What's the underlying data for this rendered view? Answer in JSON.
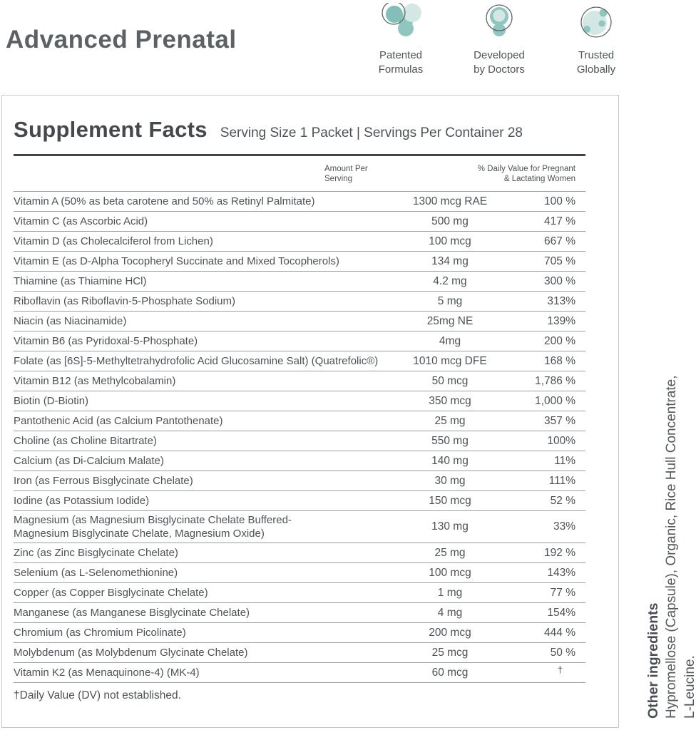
{
  "header": {
    "title": "Advanced Prenatal",
    "badges": [
      {
        "icon": "molecule-icon",
        "label": "Patented\nFormulas"
      },
      {
        "icon": "doctor-icon",
        "label": "Developed\nby Doctors"
      },
      {
        "icon": "globe-icon",
        "label": "Trusted\nGlobally"
      }
    ]
  },
  "supplement_facts": {
    "title": "Supplement Facts",
    "serving_info": "Serving Size 1 Packet | Servings Per Container 28",
    "columns": {
      "amount": "Amount Per\nServing",
      "daily_value": "% Daily Value for Pregnant\n& Lactating Women"
    },
    "rows": [
      {
        "name": "Vitamin A (50% as beta carotene and 50% as Retinyl Palmitate)",
        "amount": "1300 mcg RAE",
        "dv": "100 %"
      },
      {
        "name": "Vitamin C (as Ascorbic Acid)",
        "amount": "500 mg",
        "dv": "417 %"
      },
      {
        "name": "Vitamin D (as Cholecalciferol from Lichen)",
        "amount": "100 mcg",
        "dv": "667 %"
      },
      {
        "name": "Vitamin E (as D-Alpha Tocopheryl Succinate and Mixed Tocopherols)",
        "amount": "134 mg",
        "dv": "705 %"
      },
      {
        "name": "Thiamine (as Thiamine HCl)",
        "amount": "4.2 mg",
        "dv": "300 %"
      },
      {
        "name": "Riboflavin (as Riboflavin-5-Phosphate Sodium)",
        "amount": "5 mg",
        "dv": "313%"
      },
      {
        "name": "Niacin (as Niacinamide)",
        "amount": "25mg NE",
        "dv": "139%"
      },
      {
        "name": "Vitamin B6 (as Pyridoxal-5-Phosphate)",
        "amount": "4mg",
        "dv": "200 %"
      },
      {
        "name": "Folate (as [6S]-5-Methyltetrahydrofolic Acid Glucosamine Salt) (Quatrefolic®)",
        "amount": "1010 mcg DFE",
        "dv": "168 %"
      },
      {
        "name": "Vitamin B12 (as Methylcobalamin)",
        "amount": "50 mcg",
        "dv": "1,786 %"
      },
      {
        "name": "Biotin (D-Biotin)",
        "amount": "350 mcg",
        "dv": "1,000 %"
      },
      {
        "name": "Pantothenic Acid (as Calcium Pantothenate)",
        "amount": "25 mg",
        "dv": "357 %"
      },
      {
        "name": "Choline (as Choline Bitartrate)",
        "amount": "550 mg",
        "dv": "100%"
      },
      {
        "name": "Calcium (as Di-Calcium Malate)",
        "amount": "140 mg",
        "dv": "11%"
      },
      {
        "name": "Iron (as Ferrous Bisglycinate Chelate)",
        "amount": "30 mg",
        "dv": "111%"
      },
      {
        "name": "Iodine (as Potassium Iodide)",
        "amount": "150 mcg",
        "dv": "52 %"
      },
      {
        "name": "Magnesium (as Magnesium Bisglycinate Chelate Buffered-\nMagnesium Bisglycinate Chelate, Magnesium Oxide)",
        "amount": "130 mg",
        "dv": "33%"
      },
      {
        "name": "Zinc (as Zinc Bisglycinate Chelate)",
        "amount": "25 mg",
        "dv": "192 %"
      },
      {
        "name": "Selenium (as L-Selenomethionine)",
        "amount": "100 mcg",
        "dv": "143%"
      },
      {
        "name": "Copper (as Copper Bisglycinate Chelate)",
        "amount": "1 mg",
        "dv": "77 %"
      },
      {
        "name": "Manganese (as Manganese Bisglycinate Chelate)",
        "amount": "4 mg",
        "dv": "154%"
      },
      {
        "name": "Chromium (as Chromium Picolinate)",
        "amount": "200 mcg",
        "dv": "444 %"
      },
      {
        "name": "Molybdenum (as Molybdenum Glycinate Chelate)",
        "amount": "25 mcg",
        "dv": "50 %"
      },
      {
        "name": "Vitamin K2 (as Menaquinone-4) (MK-4)",
        "amount": "60 mcg",
        "dv": "†"
      }
    ],
    "footnote": "†Daily Value (DV) not established."
  },
  "other_ingredients": {
    "heading": "Other ingredients",
    "line1": "Hypromellose (Capsule), Organic, Rice Hull Concentrate,",
    "line2": "L-Leucine."
  },
  "colors": {
    "teal_dark": "#82bfb9",
    "teal_mid": "#90c6c0",
    "teal_light": "#c8e2df",
    "teal_pale": "#d3e8e5",
    "text": "#4d5254",
    "rule_thick": "#3e4345",
    "rule_thin": "#9b9f9f"
  }
}
